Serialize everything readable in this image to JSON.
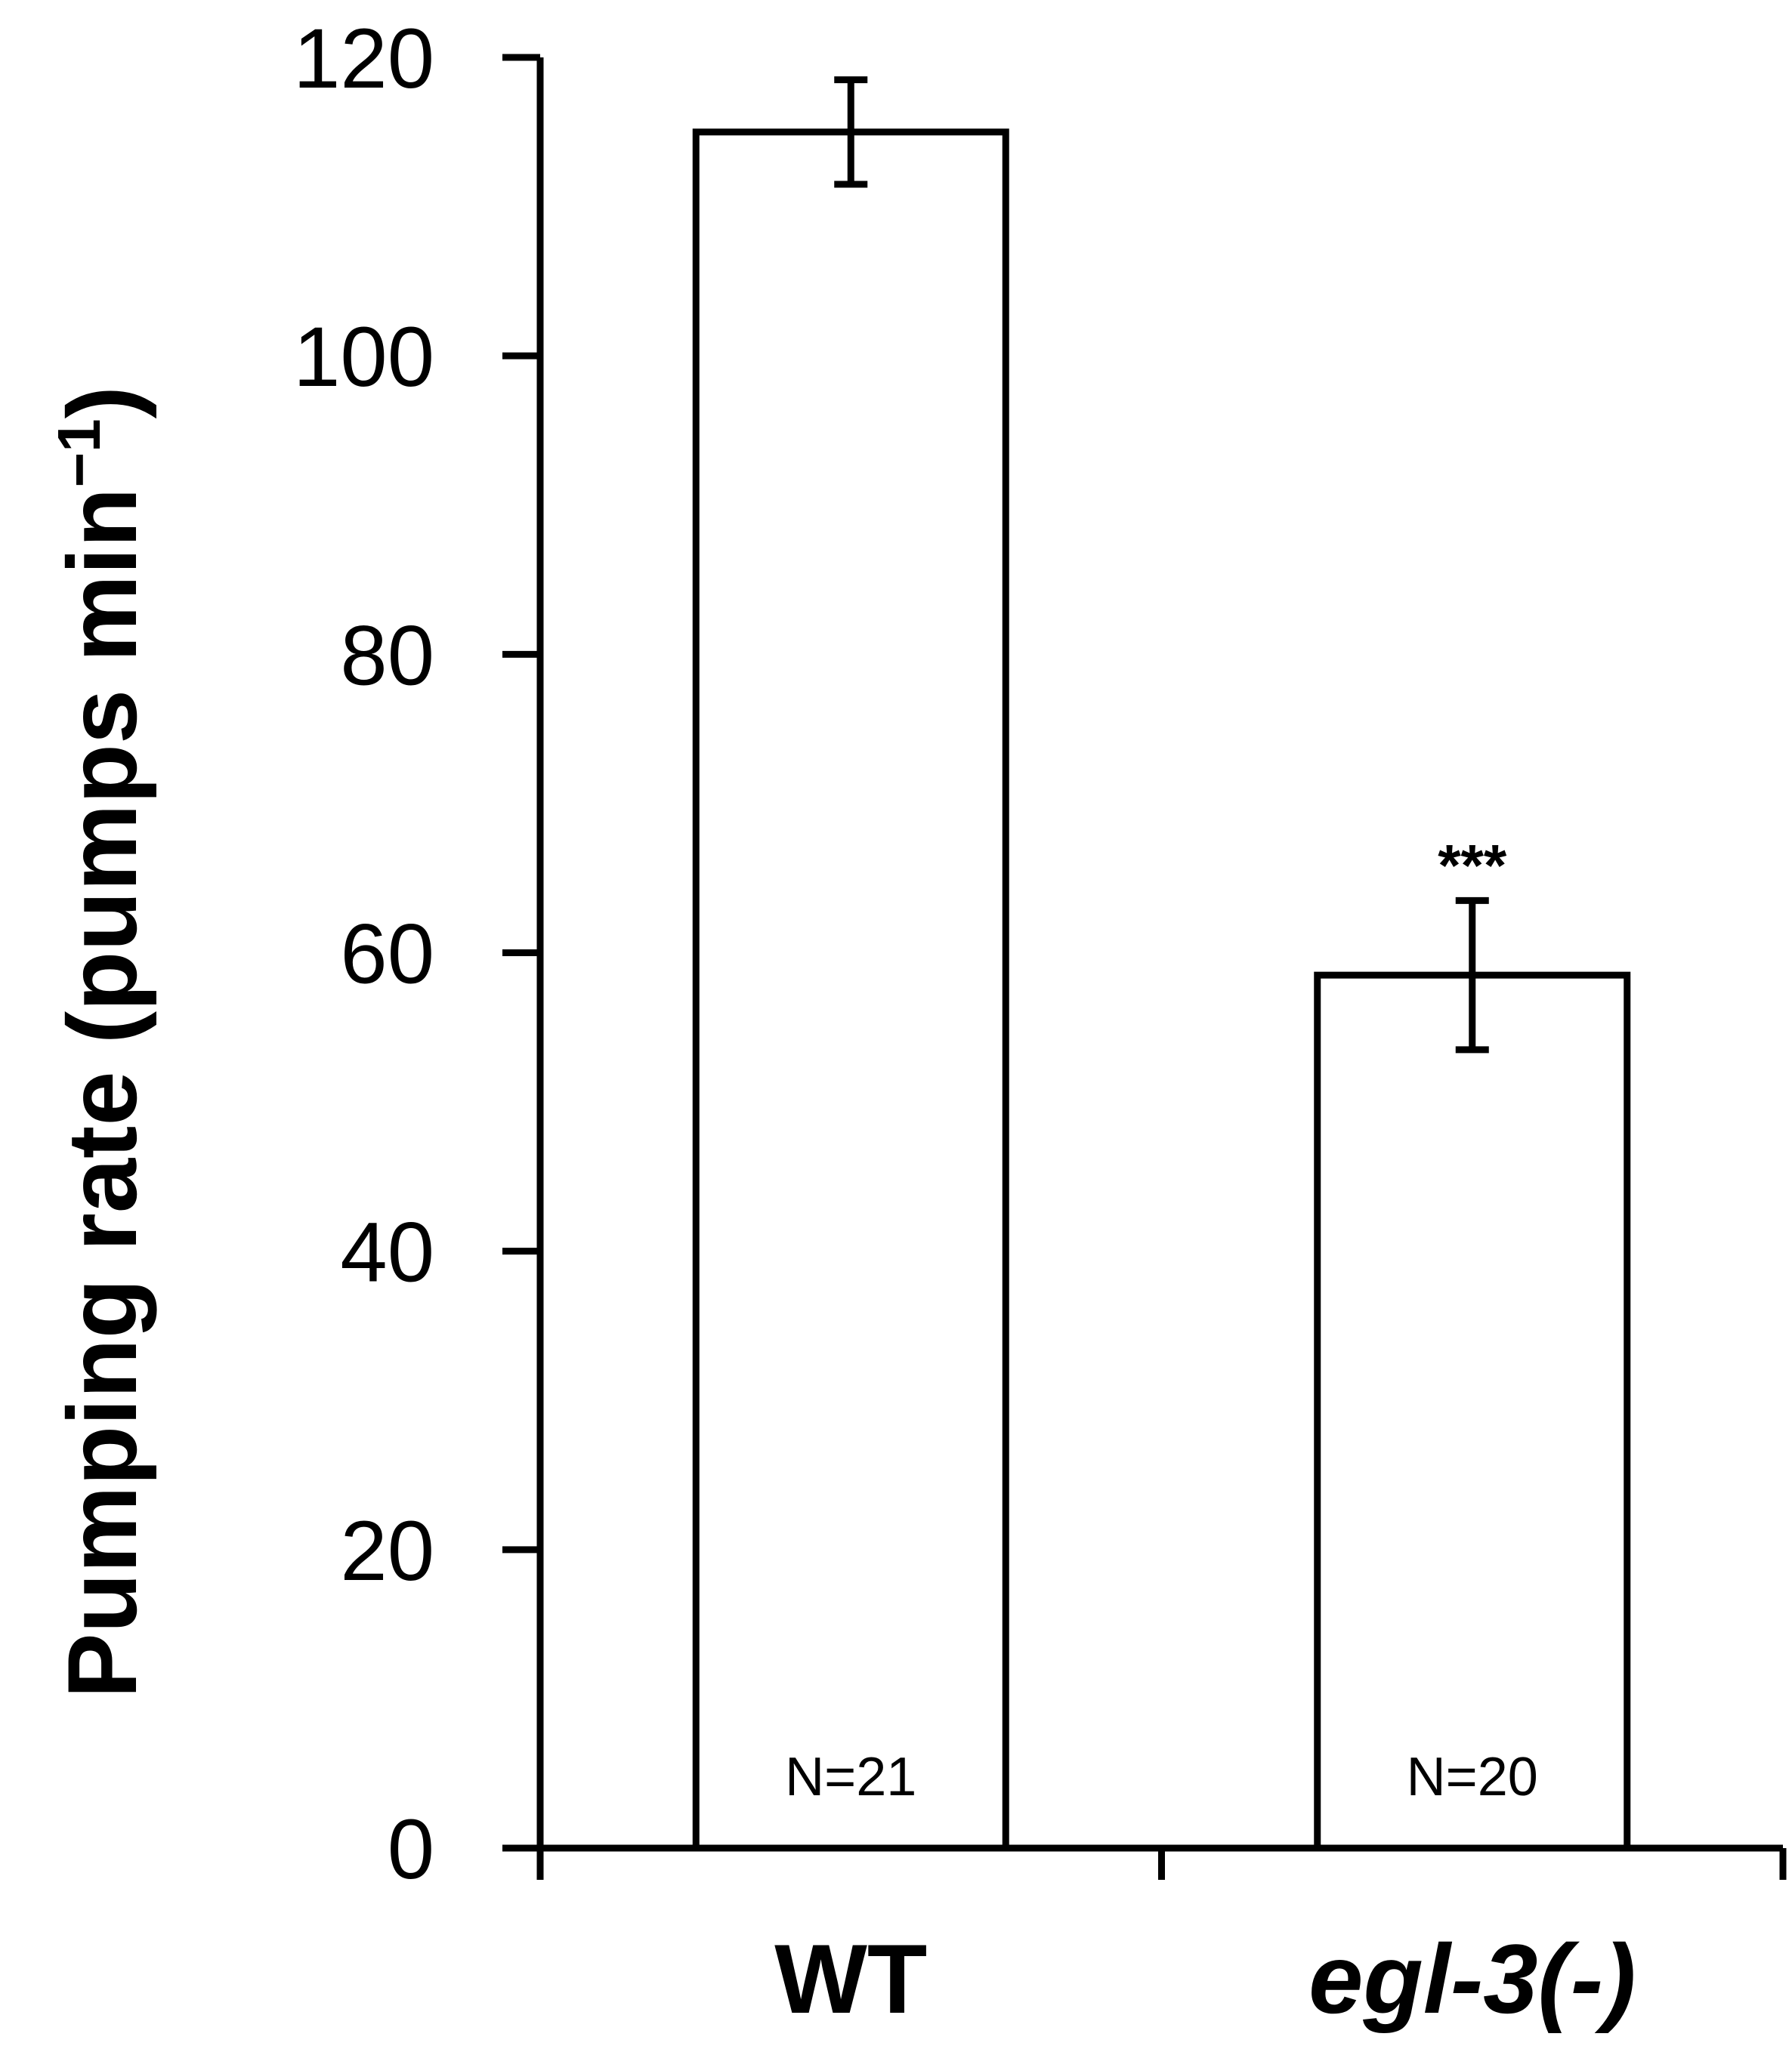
{
  "chart_data": {
    "type": "bar",
    "categories": [
      "WT",
      "egl-3(-)"
    ],
    "values": [
      115,
      58.5
    ],
    "errors": [
      3.5,
      5.0
    ],
    "sample_sizes": [
      "N=21",
      "N=20"
    ],
    "significance": [
      "",
      "***"
    ],
    "ylabel": "Pumping rate (pumps min",
    "ylabel_superscript": "−1",
    "ylabel_suffix": ")",
    "ylim": [
      0,
      120
    ],
    "yticks": [
      0,
      20,
      40,
      60,
      80,
      100,
      120
    ],
    "grid": false,
    "bar_fill": "#ffffff",
    "bar_stroke": "#000000"
  }
}
